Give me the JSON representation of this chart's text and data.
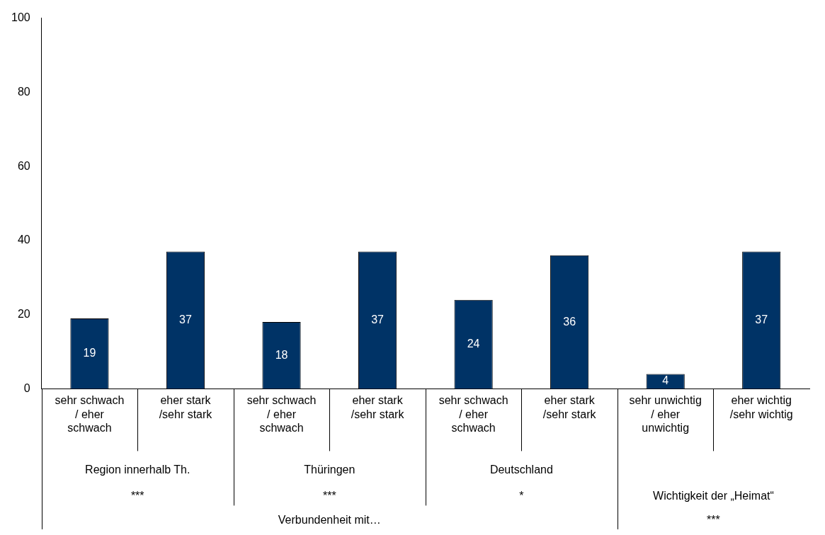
{
  "chart_data": {
    "type": "bar",
    "categories": [
      "sehr schwach / eher schwach",
      "eher stark /sehr stark",
      "sehr schwach / eher schwach",
      "eher stark /sehr stark",
      "sehr schwach / eher schwach",
      "eher stark /sehr stark",
      "sehr unwichtig / eher unwichtig",
      "eher wichtig /sehr wichtig"
    ],
    "values": [
      19,
      37,
      18,
      37,
      24,
      36,
      4,
      37
    ],
    "color": "#003366",
    "ylim": [
      0,
      100
    ],
    "yticks": [
      0,
      20,
      40,
      60,
      80,
      100
    ],
    "grid": false,
    "legend": false,
    "data_labels": true,
    "annotations": [
      "Region innerhalb Th.",
      "Thüringen",
      "Deutschland",
      "***",
      "***",
      "*",
      "Wichtigkeit der „Heimat“",
      "***",
      "Verbundenheit mit…"
    ]
  }
}
